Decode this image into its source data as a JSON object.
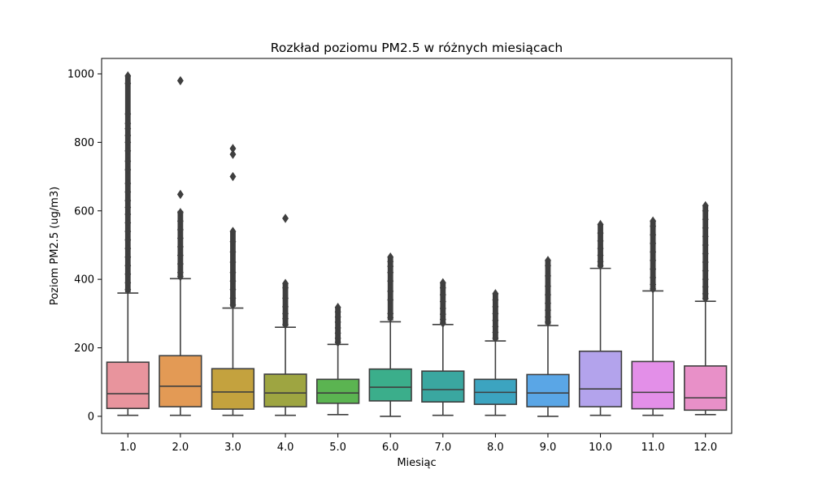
{
  "chart_data": {
    "type": "box",
    "title": "Rozkład poziomu PM2.5 w różnych miesiącach",
    "xlabel": "Miesiąc",
    "ylabel": "Poziom PM2.5 (ug/m3)",
    "ylim": [
      -50,
      1045
    ],
    "yticks": [
      0,
      200,
      400,
      600,
      800,
      1000
    ],
    "grid": false,
    "legend": "none",
    "categories": [
      "1.0",
      "2.0",
      "3.0",
      "4.0",
      "5.0",
      "6.0",
      "7.0",
      "8.0",
      "9.0",
      "10.0",
      "11.0",
      "12.0"
    ],
    "boxes": [
      {
        "category": "1.0",
        "color": "#e8949d",
        "whisker_low": 3,
        "q1": 23,
        "median": 66,
        "q3": 158,
        "whisker_high": 360,
        "outlier_range": [
          362,
          994
        ],
        "outliers": [
          994,
          972,
          883,
          855,
          840,
          820,
          800,
          775,
          745,
          720,
          680,
          655,
          630,
          610,
          590,
          565,
          540,
          515,
          490,
          465,
          440,
          415,
          390,
          370
        ]
      },
      {
        "category": "2.0",
        "color": "#e39a55",
        "whisker_low": 3,
        "q1": 28,
        "median": 88,
        "q3": 177,
        "whisker_high": 402,
        "outlier_range": [
          405,
          600
        ],
        "outliers": [
          980,
          648,
          595,
          570,
          545,
          520,
          495,
          470,
          445,
          420,
          408
        ]
      },
      {
        "category": "3.0",
        "color": "#c4a23e",
        "whisker_low": 3,
        "q1": 21,
        "median": 71,
        "q3": 139,
        "whisker_high": 316,
        "outlier_range": [
          320,
          540
        ],
        "outliers": [
          782,
          765,
          700,
          540,
          510,
          480,
          450,
          420,
          395,
          370,
          345,
          325
        ]
      },
      {
        "category": "4.0",
        "color": "#9ea541",
        "whisker_low": 3,
        "q1": 28,
        "median": 68,
        "q3": 123,
        "whisker_high": 260,
        "outlier_range": [
          263,
          390
        ],
        "outliers": [
          578,
          388,
          375,
          345,
          320,
          300,
          285,
          268
        ]
      },
      {
        "category": "5.0",
        "color": "#5bb451",
        "whisker_low": 5,
        "q1": 38,
        "median": 68,
        "q3": 108,
        "whisker_high": 210,
        "outlier_range": [
          213,
          320
        ],
        "outliers": [
          318,
          305,
          290,
          275,
          258,
          243,
          228,
          216
        ]
      },
      {
        "category": "6.0",
        "color": "#3bae8b",
        "whisker_low": 0,
        "q1": 45,
        "median": 85,
        "q3": 138,
        "whisker_high": 276,
        "outlier_range": [
          280,
          465
        ],
        "outliers": [
          465,
          452,
          438,
          420,
          395,
          365,
          340,
          300,
          288
        ]
      },
      {
        "category": "7.0",
        "color": "#3aa7a0",
        "whisker_low": 3,
        "q1": 42,
        "median": 78,
        "q3": 132,
        "whisker_high": 268,
        "outlier_range": [
          270,
          390
        ],
        "outliers": [
          390,
          375,
          355,
          335,
          315,
          298,
          283,
          272
        ]
      },
      {
        "category": "8.0",
        "color": "#3ca4c0",
        "whisker_low": 3,
        "q1": 35,
        "median": 70,
        "q3": 108,
        "whisker_high": 220,
        "outlier_range": [
          223,
          360
        ],
        "outliers": [
          358,
          340,
          320,
          300,
          280,
          262,
          245,
          228
        ]
      },
      {
        "category": "9.0",
        "color": "#5aa6e6",
        "whisker_low": 0,
        "q1": 28,
        "median": 68,
        "q3": 122,
        "whisker_high": 265,
        "outlier_range": [
          268,
          455
        ],
        "outliers": [
          455,
          440,
          410,
          380,
          355,
          330,
          310,
          290,
          275
        ]
      },
      {
        "category": "10.0",
        "color": "#b3a3ec",
        "whisker_low": 3,
        "q1": 28,
        "median": 80,
        "q3": 190,
        "whisker_high": 432,
        "outlier_range": [
          435,
          560
        ],
        "outliers": [
          560,
          535,
          512,
          490,
          470,
          452,
          440
        ]
      },
      {
        "category": "11.0",
        "color": "#e38fe8",
        "whisker_low": 3,
        "q1": 22,
        "median": 70,
        "q3": 160,
        "whisker_high": 366,
        "outlier_range": [
          368,
          570
        ],
        "outliers": [
          570,
          555,
          530,
          505,
          480,
          455,
          430,
          405,
          385,
          372
        ]
      },
      {
        "category": "12.0",
        "color": "#e890c8",
        "whisker_low": 5,
        "q1": 18,
        "median": 54,
        "q3": 147,
        "whisker_high": 336,
        "outlier_range": [
          340,
          615
        ],
        "outliers": [
          615,
          600,
          575,
          550,
          525,
          500,
          475,
          450,
          425,
          400,
          378,
          358,
          344
        ]
      }
    ]
  }
}
